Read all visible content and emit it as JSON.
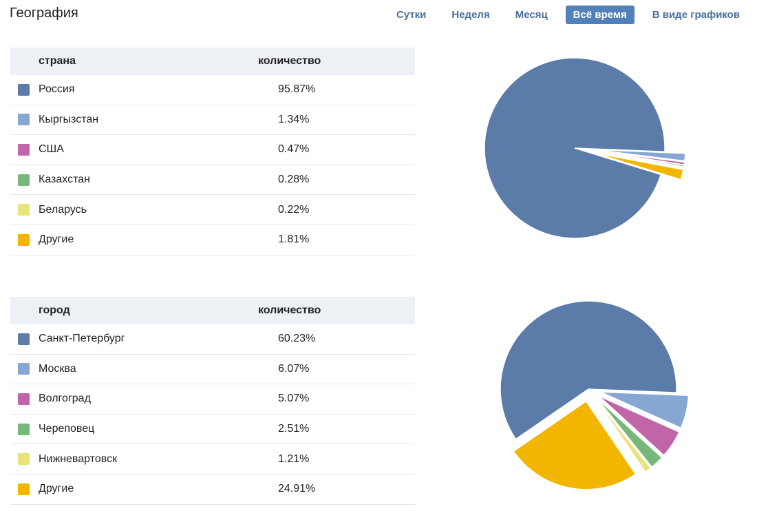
{
  "page": {
    "title": "География"
  },
  "period_tabs": [
    {
      "label": "Сутки",
      "active": false
    },
    {
      "label": "Неделя",
      "active": false
    },
    {
      "label": "Месяц",
      "active": false
    },
    {
      "label": "Всё время",
      "active": true
    },
    {
      "label": "В виде графиков",
      "active": false
    }
  ],
  "colors": {
    "blue": "#5b7ba8",
    "light_blue": "#86a6d4",
    "pink": "#c066a8",
    "green": "#77b87a",
    "yellow": "#e8e37a",
    "orange": "#f2b500"
  },
  "chart_data": [
    {
      "type": "pie",
      "title": "",
      "header": {
        "name": "страна",
        "value": "количество"
      },
      "categories": [
        "Россия",
        "Кыргызстан",
        "США",
        "Казахстан",
        "Беларусь",
        "Другие"
      ],
      "values": [
        95.87,
        1.34,
        0.47,
        0.28,
        0.22,
        1.81
      ],
      "labels": [
        "95.87%",
        "1.34%",
        "0.47%",
        "0.28%",
        "0.22%",
        "1.81%"
      ],
      "colors": [
        "#5b7ba8",
        "#86a6d4",
        "#c066a8",
        "#77b87a",
        "#e8e37a",
        "#f2b500"
      ]
    },
    {
      "type": "pie",
      "title": "",
      "header": {
        "name": "город",
        "value": "количество"
      },
      "categories": [
        "Санкт-Петербург",
        "Москва",
        "Волгоград",
        "Череповец",
        "Нижневартовск",
        "Другие"
      ],
      "values": [
        60.23,
        6.07,
        5.07,
        2.51,
        1.21,
        24.91
      ],
      "labels": [
        "60.23%",
        "6.07%",
        "5.07%",
        "2.51%",
        "1.21%",
        "24.91%"
      ],
      "colors": [
        "#5b7ba8",
        "#86a6d4",
        "#c066a8",
        "#77b87a",
        "#e8e37a",
        "#f2b500"
      ]
    }
  ]
}
